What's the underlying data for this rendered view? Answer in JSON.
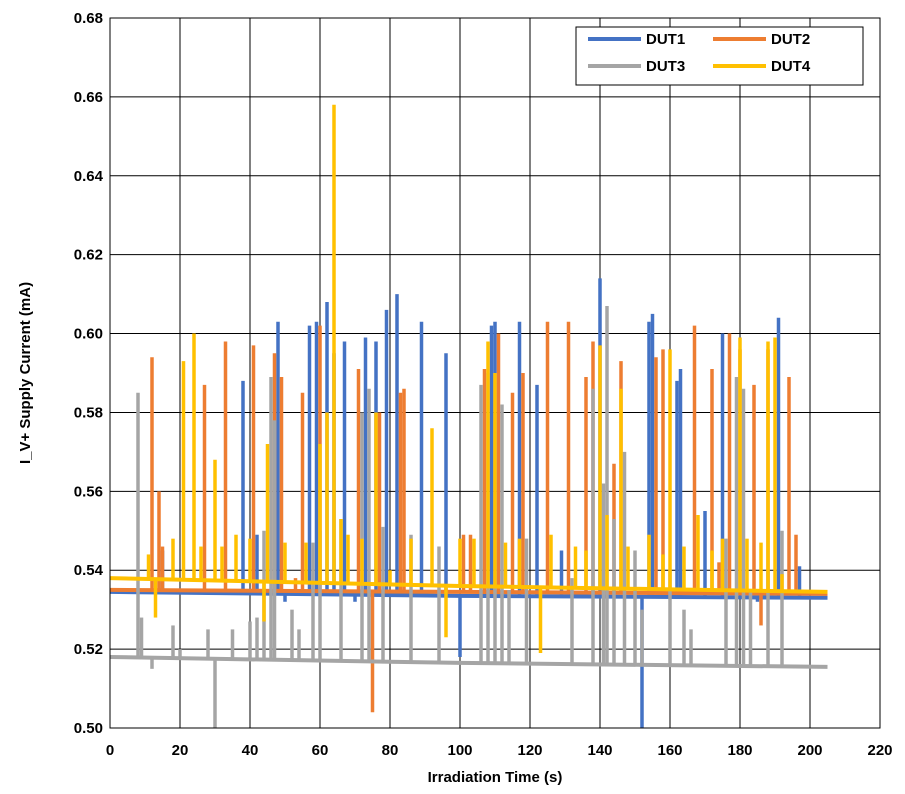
{
  "chart_data": {
    "type": "line",
    "title": "",
    "xlabel": "Irradiation Time (s)",
    "ylabel": "I_V+ Supply Current (mA)",
    "xlim": [
      0,
      220
    ],
    "ylim": [
      0.5,
      0.68
    ],
    "xticks": [
      "0",
      "20",
      "40",
      "60",
      "80",
      "100",
      "120",
      "140",
      "160",
      "180",
      "200",
      "220"
    ],
    "yticks": [
      "0.50",
      "0.52",
      "0.54",
      "0.56",
      "0.58",
      "0.60",
      "0.62",
      "0.64",
      "0.66",
      "0.68"
    ],
    "grid": true,
    "legend_position": "top-right",
    "series": [
      {
        "name": "DUT1",
        "color": "#4472C4",
        "baseline": [
          [
            0,
            0.5345
          ],
          [
            100,
            0.5335
          ],
          [
            205,
            0.533
          ]
        ],
        "spikes": [
          [
            15,
            0.545
          ],
          [
            38,
            0.588
          ],
          [
            42,
            0.549
          ],
          [
            48,
            0.603
          ],
          [
            50,
            0.532
          ],
          [
            57,
            0.602
          ],
          [
            59,
            0.603
          ],
          [
            62,
            0.608
          ],
          [
            64,
            0.595
          ],
          [
            67,
            0.598
          ],
          [
            70,
            0.532
          ],
          [
            73,
            0.599
          ],
          [
            76,
            0.598
          ],
          [
            79,
            0.606
          ],
          [
            82,
            0.61
          ],
          [
            89,
            0.603
          ],
          [
            96,
            0.595
          ],
          [
            100,
            0.518
          ],
          [
            109,
            0.602
          ],
          [
            110,
            0.603
          ],
          [
            117,
            0.603
          ],
          [
            122,
            0.587
          ],
          [
            129,
            0.545
          ],
          [
            140,
            0.614
          ],
          [
            152,
            0.5
          ],
          [
            155,
            0.605
          ],
          [
            154,
            0.603
          ],
          [
            162,
            0.588
          ],
          [
            163,
            0.591
          ],
          [
            170,
            0.555
          ],
          [
            175,
            0.6
          ],
          [
            185,
            0.532
          ],
          [
            191,
            0.604
          ],
          [
            197,
            0.541
          ]
        ]
      },
      {
        "name": "DUT2",
        "color": "#ED7D31",
        "baseline": [
          [
            0,
            0.535
          ],
          [
            100,
            0.5345
          ],
          [
            205,
            0.534
          ]
        ],
        "spikes": [
          [
            12,
            0.594
          ],
          [
            14,
            0.56
          ],
          [
            15,
            0.546
          ],
          [
            27,
            0.587
          ],
          [
            33,
            0.598
          ],
          [
            41,
            0.597
          ],
          [
            47,
            0.595
          ],
          [
            49,
            0.589
          ],
          [
            53,
            0.538
          ],
          [
            55,
            0.585
          ],
          [
            60,
            0.602
          ],
          [
            71,
            0.591
          ],
          [
            75,
            0.504
          ],
          [
            77,
            0.58
          ],
          [
            83,
            0.585
          ],
          [
            84,
            0.586
          ],
          [
            101,
            0.549
          ],
          [
            103,
            0.549
          ],
          [
            107,
            0.591
          ],
          [
            111,
            0.6
          ],
          [
            115,
            0.585
          ],
          [
            118,
            0.59
          ],
          [
            125,
            0.603
          ],
          [
            131,
            0.603
          ],
          [
            136,
            0.589
          ],
          [
            138,
            0.598
          ],
          [
            144,
            0.567
          ],
          [
            146,
            0.593
          ],
          [
            156,
            0.594
          ],
          [
            158,
            0.596
          ],
          [
            167,
            0.602
          ],
          [
            172,
            0.591
          ],
          [
            174,
            0.542
          ],
          [
            177,
            0.6
          ],
          [
            180,
            0.596
          ],
          [
            184,
            0.587
          ],
          [
            186,
            0.526
          ],
          [
            188,
            0.596
          ],
          [
            194,
            0.589
          ],
          [
            196,
            0.549
          ]
        ]
      },
      {
        "name": "DUT3",
        "color": "#A5A5A5",
        "baseline": [
          [
            0,
            0.518
          ],
          [
            100,
            0.5165
          ],
          [
            205,
            0.5155
          ]
        ],
        "spikes": [
          [
            8,
            0.585
          ],
          [
            9,
            0.528
          ],
          [
            12,
            0.515
          ],
          [
            18,
            0.526
          ],
          [
            20,
            0.52
          ],
          [
            28,
            0.525
          ],
          [
            30,
            0.5
          ],
          [
            35,
            0.525
          ],
          [
            40,
            0.527
          ],
          [
            42,
            0.528
          ],
          [
            44,
            0.55
          ],
          [
            46,
            0.589
          ],
          [
            47,
            0.578
          ],
          [
            52,
            0.53
          ],
          [
            54,
            0.525
          ],
          [
            58,
            0.547
          ],
          [
            60,
            0.55
          ],
          [
            66,
            0.553
          ],
          [
            72,
            0.58
          ],
          [
            74,
            0.586
          ],
          [
            78,
            0.551
          ],
          [
            86,
            0.549
          ],
          [
            94,
            0.546
          ],
          [
            106,
            0.587
          ],
          [
            108,
            0.59
          ],
          [
            110,
            0.578
          ],
          [
            112,
            0.582
          ],
          [
            114,
            0.535
          ],
          [
            119,
            0.548
          ],
          [
            132,
            0.538
          ],
          [
            138,
            0.586
          ],
          [
            141,
            0.562
          ],
          [
            142,
            0.607
          ],
          [
            144,
            0.553
          ],
          [
            147,
            0.57
          ],
          [
            150,
            0.545
          ],
          [
            152,
            0.53
          ],
          [
            160,
            0.54
          ],
          [
            164,
            0.53
          ],
          [
            166,
            0.525
          ],
          [
            176,
            0.548
          ],
          [
            179,
            0.589
          ],
          [
            181,
            0.586
          ],
          [
            183,
            0.535
          ],
          [
            188,
            0.54
          ],
          [
            192,
            0.55
          ]
        ]
      },
      {
        "name": "DUT4",
        "color": "#FFC000",
        "baseline": [
          [
            0,
            0.538
          ],
          [
            100,
            0.536
          ],
          [
            205,
            0.5345
          ]
        ],
        "spikes": [
          [
            11,
            0.544
          ],
          [
            13,
            0.528
          ],
          [
            18,
            0.548
          ],
          [
            21,
            0.593
          ],
          [
            24,
            0.6
          ],
          [
            26,
            0.546
          ],
          [
            30,
            0.568
          ],
          [
            32,
            0.546
          ],
          [
            36,
            0.549
          ],
          [
            40,
            0.548
          ],
          [
            44,
            0.527
          ],
          [
            45,
            0.572
          ],
          [
            50,
            0.547
          ],
          [
            52,
            0.537
          ],
          [
            56,
            0.547
          ],
          [
            60,
            0.572
          ],
          [
            62,
            0.58
          ],
          [
            64,
            0.658
          ],
          [
            66,
            0.553
          ],
          [
            68,
            0.549
          ],
          [
            72,
            0.548
          ],
          [
            76,
            0.58
          ],
          [
            80,
            0.54
          ],
          [
            86,
            0.548
          ],
          [
            92,
            0.576
          ],
          [
            96,
            0.523
          ],
          [
            100,
            0.548
          ],
          [
            104,
            0.548
          ],
          [
            108,
            0.598
          ],
          [
            110,
            0.59
          ],
          [
            113,
            0.547
          ],
          [
            117,
            0.548
          ],
          [
            123,
            0.519
          ],
          [
            126,
            0.549
          ],
          [
            133,
            0.546
          ],
          [
            136,
            0.545
          ],
          [
            140,
            0.597
          ],
          [
            142,
            0.554
          ],
          [
            146,
            0.586
          ],
          [
            148,
            0.546
          ],
          [
            154,
            0.549
          ],
          [
            158,
            0.544
          ],
          [
            160,
            0.596
          ],
          [
            164,
            0.546
          ],
          [
            168,
            0.554
          ],
          [
            172,
            0.545
          ],
          [
            175,
            0.548
          ],
          [
            180,
            0.599
          ],
          [
            182,
            0.548
          ],
          [
            186,
            0.547
          ],
          [
            188,
            0.598
          ],
          [
            190,
            0.599
          ],
          [
            192,
            0.539
          ]
        ]
      }
    ]
  }
}
